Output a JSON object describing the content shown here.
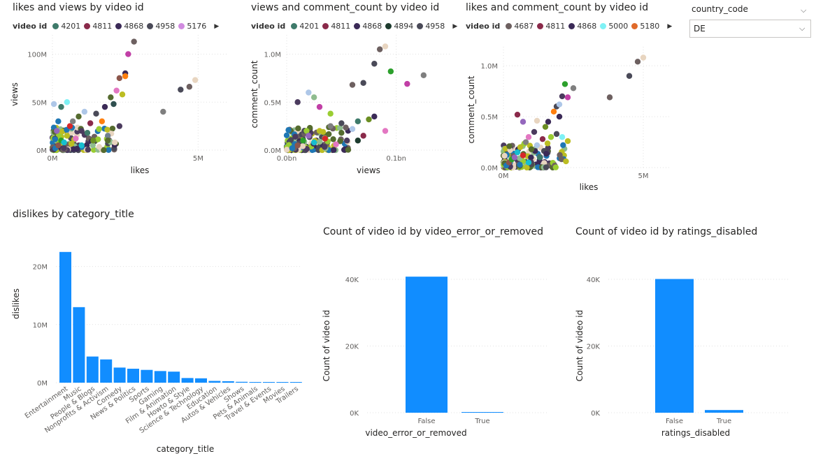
{
  "slicer": {
    "title": "country_code",
    "value": "DE"
  },
  "scatter_legends": [
    {
      "label": "video id",
      "items": [
        {
          "id": "4201",
          "color": "#3e7a6a"
        },
        {
          "id": "4811",
          "color": "#8a2a4a"
        },
        {
          "id": "4868",
          "color": "#3b2a57"
        },
        {
          "id": "4958",
          "color": "#4a4a58"
        },
        {
          "id": "5176",
          "color": "#d18be0"
        }
      ]
    },
    {
      "label": "video id",
      "items": [
        {
          "id": "4201",
          "color": "#3e7a6a"
        },
        {
          "id": "4811",
          "color": "#8a2a4a"
        },
        {
          "id": "4868",
          "color": "#3b2a57"
        },
        {
          "id": "4894",
          "color": "#1d3b2e"
        },
        {
          "id": "4958",
          "color": "#4a4a58"
        }
      ]
    },
    {
      "label": "video id",
      "items": [
        {
          "id": "4687",
          "color": "#6d6060"
        },
        {
          "id": "4811",
          "color": "#8a2a4a"
        },
        {
          "id": "4868",
          "color": "#3b2a57"
        },
        {
          "id": "5000",
          "color": "#7ef1f5"
        },
        {
          "id": "5180",
          "color": "#e06a2a"
        }
      ]
    }
  ],
  "chart_data": [
    {
      "type": "scatter",
      "title": "likes and views by video id",
      "xlabel": "likes",
      "ylabel": "views",
      "xticks": [
        "0M",
        "5M"
      ],
      "yticks": [
        "0M",
        "50M",
        "100M"
      ],
      "xlim": [
        0,
        6
      ],
      "ylim": [
        0,
        120
      ],
      "units": "M",
      "points": [
        {
          "x": 0.1,
          "y": 2,
          "c": "#1f77b4"
        },
        {
          "x": 0.2,
          "y": 5,
          "c": "#8c564b"
        },
        {
          "x": 0.3,
          "y": 10,
          "c": "#2ca02c"
        },
        {
          "x": 0.15,
          "y": 20,
          "c": "#9467bd"
        },
        {
          "x": 0.4,
          "y": 8,
          "c": "#17becf"
        },
        {
          "x": 0.5,
          "y": 15,
          "c": "#bcbd22"
        },
        {
          "x": 0.6,
          "y": 25,
          "c": "#d62728"
        },
        {
          "x": 0.7,
          "y": 30,
          "c": "#7f7f7f"
        },
        {
          "x": 0.8,
          "y": 12,
          "c": "#e377c2"
        },
        {
          "x": 0.9,
          "y": 35,
          "c": "#556b2f"
        },
        {
          "x": 1.0,
          "y": 20,
          "c": "#4b3b5e"
        },
        {
          "x": 1.1,
          "y": 40,
          "c": "#aec7e8"
        },
        {
          "x": 1.2,
          "y": 18,
          "c": "#3e7a6a"
        },
        {
          "x": 1.3,
          "y": 28,
          "c": "#8a2a4a"
        },
        {
          "x": 1.4,
          "y": 10,
          "c": "#6b8e23"
        },
        {
          "x": 1.5,
          "y": 38,
          "c": "#4a4a58"
        },
        {
          "x": 1.6,
          "y": 22,
          "c": "#9acd32"
        },
        {
          "x": 1.7,
          "y": 30,
          "c": "#ff7f0e"
        },
        {
          "x": 1.8,
          "y": 45,
          "c": "#3b2a57"
        },
        {
          "x": 1.9,
          "y": 15,
          "c": "#708090"
        },
        {
          "x": 2.0,
          "y": 55,
          "c": "#556b2f"
        },
        {
          "x": 2.1,
          "y": 48,
          "c": "#2f4f4f"
        },
        {
          "x": 2.2,
          "y": 62,
          "c": "#e377c2"
        },
        {
          "x": 2.3,
          "y": 75,
          "c": "#8c564b"
        },
        {
          "x": 2.4,
          "y": 58,
          "c": "#bcbd22"
        },
        {
          "x": 2.5,
          "y": 80,
          "c": "#3b2a57"
        },
        {
          "x": 2.6,
          "y": 100,
          "c": "#c13fa6"
        },
        {
          "x": 2.8,
          "y": 113,
          "c": "#6d6060"
        },
        {
          "x": 2.3,
          "y": 25,
          "c": "#4b3b5e"
        },
        {
          "x": 1.9,
          "y": 10,
          "c": "#556b2f"
        },
        {
          "x": 0.5,
          "y": 50,
          "c": "#7ef1f5"
        },
        {
          "x": 0.3,
          "y": 45,
          "c": "#3e7a6a"
        },
        {
          "x": 0.05,
          "y": 48,
          "c": "#aec7e8"
        },
        {
          "x": 3.8,
          "y": 40,
          "c": "#7f7f7f"
        },
        {
          "x": 4.4,
          "y": 63,
          "c": "#4a4a58"
        },
        {
          "x": 4.7,
          "y": 66,
          "c": "#6d6060"
        },
        {
          "x": 4.9,
          "y": 73,
          "c": "#e8d5c0"
        },
        {
          "x": 2.5,
          "y": 77,
          "c": "#ff7f0e"
        },
        {
          "x": 0.2,
          "y": 30,
          "c": "#1f77b4"
        },
        {
          "x": 1.0,
          "y": 5,
          "c": "#17becf"
        }
      ]
    },
    {
      "type": "scatter",
      "title": "views and comment_count by video id",
      "xlabel": "views",
      "ylabel": "comment_count",
      "xticks": [
        "0.0bn",
        "0.1bn"
      ],
      "yticks": [
        "0.0M",
        "0.5M",
        "1.0M"
      ],
      "xlim": [
        0,
        0.15
      ],
      "ylim": [
        0,
        1.2
      ],
      "points": [
        {
          "x": 0.005,
          "y": 0.02,
          "c": "#1f77b4"
        },
        {
          "x": 0.01,
          "y": 0.05,
          "c": "#8c564b"
        },
        {
          "x": 0.015,
          "y": 0.1,
          "c": "#2ca02c"
        },
        {
          "x": 0.02,
          "y": 0.15,
          "c": "#9467bd"
        },
        {
          "x": 0.025,
          "y": 0.08,
          "c": "#17becf"
        },
        {
          "x": 0.03,
          "y": 0.2,
          "c": "#bcbd22"
        },
        {
          "x": 0.035,
          "y": 0.12,
          "c": "#d62728"
        },
        {
          "x": 0.04,
          "y": 0.25,
          "c": "#7f7f7f"
        },
        {
          "x": 0.045,
          "y": 0.06,
          "c": "#e377c2"
        },
        {
          "x": 0.05,
          "y": 0.18,
          "c": "#556b2f"
        },
        {
          "x": 0.055,
          "y": 0.1,
          "c": "#4b3b5e"
        },
        {
          "x": 0.06,
          "y": 0.22,
          "c": "#aec7e8"
        },
        {
          "x": 0.065,
          "y": 0.3,
          "c": "#3e7a6a"
        },
        {
          "x": 0.07,
          "y": 0.15,
          "c": "#8a2a4a"
        },
        {
          "x": 0.075,
          "y": 0.32,
          "c": "#6b8e23"
        },
        {
          "x": 0.08,
          "y": 0.35,
          "c": "#3b2a57"
        },
        {
          "x": 0.02,
          "y": 0.6,
          "c": "#aec7e8"
        },
        {
          "x": 0.025,
          "y": 0.55,
          "c": "#8fbc8f"
        },
        {
          "x": 0.01,
          "y": 0.5,
          "c": "#4b3b5e"
        },
        {
          "x": 0.03,
          "y": 0.45,
          "c": "#c13fa6"
        },
        {
          "x": 0.04,
          "y": 0.38,
          "c": "#9acd32"
        },
        {
          "x": 0.05,
          "y": 0.28,
          "c": "#4a4a58"
        },
        {
          "x": 0.06,
          "y": 0.68,
          "c": "#6d6060"
        },
        {
          "x": 0.07,
          "y": 0.7,
          "c": "#4a4a58"
        },
        {
          "x": 0.08,
          "y": 0.9,
          "c": "#4a4a58"
        },
        {
          "x": 0.085,
          "y": 1.05,
          "c": "#6d6060"
        },
        {
          "x": 0.09,
          "y": 1.08,
          "c": "#e8d5c0"
        },
        {
          "x": 0.095,
          "y": 0.82,
          "c": "#2ca02c"
        },
        {
          "x": 0.11,
          "y": 0.69,
          "c": "#c13fa6"
        },
        {
          "x": 0.125,
          "y": 0.78,
          "c": "#7f7f7f"
        },
        {
          "x": 0.065,
          "y": 0.1,
          "c": "#1d3b2e"
        },
        {
          "x": 0.09,
          "y": 0.2,
          "c": "#e377c2"
        }
      ]
    },
    {
      "type": "scatter",
      "title": "likes and comment_count by video id",
      "xlabel": "likes",
      "ylabel": "comment_count",
      "xticks": [
        "0M",
        "5M"
      ],
      "yticks": [
        "0.0M",
        "0.5M",
        "1.0M"
      ],
      "xlim": [
        0,
        6
      ],
      "ylim": [
        0,
        1.2
      ],
      "points": [
        {
          "x": 0.1,
          "y": 0.02,
          "c": "#1f77b4"
        },
        {
          "x": 0.2,
          "y": 0.05,
          "c": "#8c564b"
        },
        {
          "x": 0.3,
          "y": 0.08,
          "c": "#2ca02c"
        },
        {
          "x": 0.4,
          "y": 0.1,
          "c": "#9467bd"
        },
        {
          "x": 0.5,
          "y": 0.15,
          "c": "#17becf"
        },
        {
          "x": 0.6,
          "y": 0.2,
          "c": "#bcbd22"
        },
        {
          "x": 0.7,
          "y": 0.12,
          "c": "#d62728"
        },
        {
          "x": 0.8,
          "y": 0.25,
          "c": "#7f7f7f"
        },
        {
          "x": 0.9,
          "y": 0.3,
          "c": "#e377c2"
        },
        {
          "x": 1.0,
          "y": 0.18,
          "c": "#556b2f"
        },
        {
          "x": 1.1,
          "y": 0.35,
          "c": "#4b3b5e"
        },
        {
          "x": 1.2,
          "y": 0.22,
          "c": "#aec7e8"
        },
        {
          "x": 1.3,
          "y": 0.1,
          "c": "#3e7a6a"
        },
        {
          "x": 1.4,
          "y": 0.28,
          "c": "#8a2a4a"
        },
        {
          "x": 1.5,
          "y": 0.4,
          "c": "#6b8e23"
        },
        {
          "x": 1.6,
          "y": 0.45,
          "c": "#3b2a57"
        },
        {
          "x": 1.7,
          "y": 0.3,
          "c": "#9acd32"
        },
        {
          "x": 1.8,
          "y": 0.55,
          "c": "#ff7f0e"
        },
        {
          "x": 1.9,
          "y": 0.6,
          "c": "#4a4a58"
        },
        {
          "x": 2.0,
          "y": 0.62,
          "c": "#aec7e8"
        },
        {
          "x": 2.1,
          "y": 0.7,
          "c": "#4b3b5e"
        },
        {
          "x": 2.2,
          "y": 0.82,
          "c": "#2ca02c"
        },
        {
          "x": 2.3,
          "y": 0.69,
          "c": "#c13fa6"
        },
        {
          "x": 2.5,
          "y": 0.78,
          "c": "#7f7f7f"
        },
        {
          "x": 0.5,
          "y": 0.52,
          "c": "#8a2a4a"
        },
        {
          "x": 0.7,
          "y": 0.45,
          "c": "#9467bd"
        },
        {
          "x": 1.2,
          "y": 0.46,
          "c": "#e8d5c0"
        },
        {
          "x": 2.0,
          "y": 0.5,
          "c": "#3b2a57"
        },
        {
          "x": 3.8,
          "y": 0.69,
          "c": "#6d6060"
        },
        {
          "x": 4.5,
          "y": 0.9,
          "c": "#4a4a58"
        },
        {
          "x": 4.8,
          "y": 1.04,
          "c": "#6d6060"
        },
        {
          "x": 5.0,
          "y": 1.08,
          "c": "#e8d5c0"
        },
        {
          "x": 1.9,
          "y": 0.33,
          "c": "#4a4a58"
        },
        {
          "x": 2.1,
          "y": 0.3,
          "c": "#7ef1f5"
        },
        {
          "x": 2.3,
          "y": 0.26,
          "c": "#bcbd22"
        },
        {
          "x": 0.9,
          "y": 0.05,
          "c": "#17becf"
        }
      ]
    },
    {
      "type": "bar",
      "title": "dislikes by category_title",
      "xlabel": "category_title",
      "ylabel": "dislikes",
      "yticks": [
        "0M",
        "10M",
        "20M"
      ],
      "ylim": [
        0,
        25
      ],
      "categories": [
        "Entertainment",
        "Music",
        "People & Blogs",
        "Nonprofits & Activism",
        "Comedy",
        "News & Politics",
        "Sports",
        "Gaming",
        "Film & Animation",
        "Howto & Style",
        "Science & Technology",
        "Education",
        "Autos & Vehicles",
        "Shows",
        "Pets & Animals",
        "Travel & Events",
        "Movies",
        "Trailers"
      ],
      "values": [
        22.5,
        13.0,
        4.5,
        4.0,
        2.6,
        2.4,
        2.2,
        2.0,
        1.9,
        0.8,
        0.75,
        0.3,
        0.25,
        0.15,
        0.12,
        0.1,
        0.05,
        0.03
      ]
    },
    {
      "type": "bar",
      "title": "Count of video id by video_error_or_removed",
      "xlabel": "video_error_or_removed",
      "ylabel": "Count of video id",
      "yticks": [
        "0K",
        "20K",
        "40K"
      ],
      "ylim": [
        0,
        40
      ],
      "categories": [
        "False",
        "True"
      ],
      "values": [
        40.8,
        0.2
      ]
    },
    {
      "type": "bar",
      "title": "Count of video id by ratings_disabled",
      "xlabel": "ratings_disabled",
      "ylabel": "Count of video id",
      "yticks": [
        "0K",
        "20K",
        "40K"
      ],
      "ylim": [
        0,
        40
      ],
      "categories": [
        "False",
        "True"
      ],
      "values": [
        40.1,
        0.8
      ]
    }
  ]
}
